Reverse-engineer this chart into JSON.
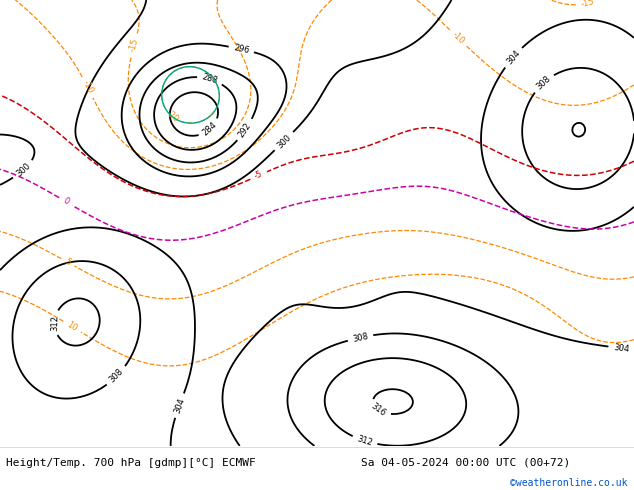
{
  "title_left": "Height/Temp. 700 hPa [gdmp][°C] ECMWF",
  "title_right": "Sa 04-05-2024 00:00 UTC (00+72)",
  "credit": "©weatheronline.co.uk",
  "land_color": "#c8e8a0",
  "sea_color": "#e0e8f0",
  "gray_land_color": "#c8c8c8",
  "fig_width": 6.34,
  "fig_height": 4.9,
  "dpi": 100,
  "black_contour_color": "#000000",
  "orange_contour_color": "#ff8800",
  "red_contour_color": "#cc0000",
  "magenta_contour_color": "#cc00aa",
  "teal_contour_color": "#00aa88",
  "label_fontsize": 6,
  "title_fontsize": 8,
  "credit_fontsize": 7,
  "map_extent": [
    -40,
    42,
    25,
    75
  ]
}
